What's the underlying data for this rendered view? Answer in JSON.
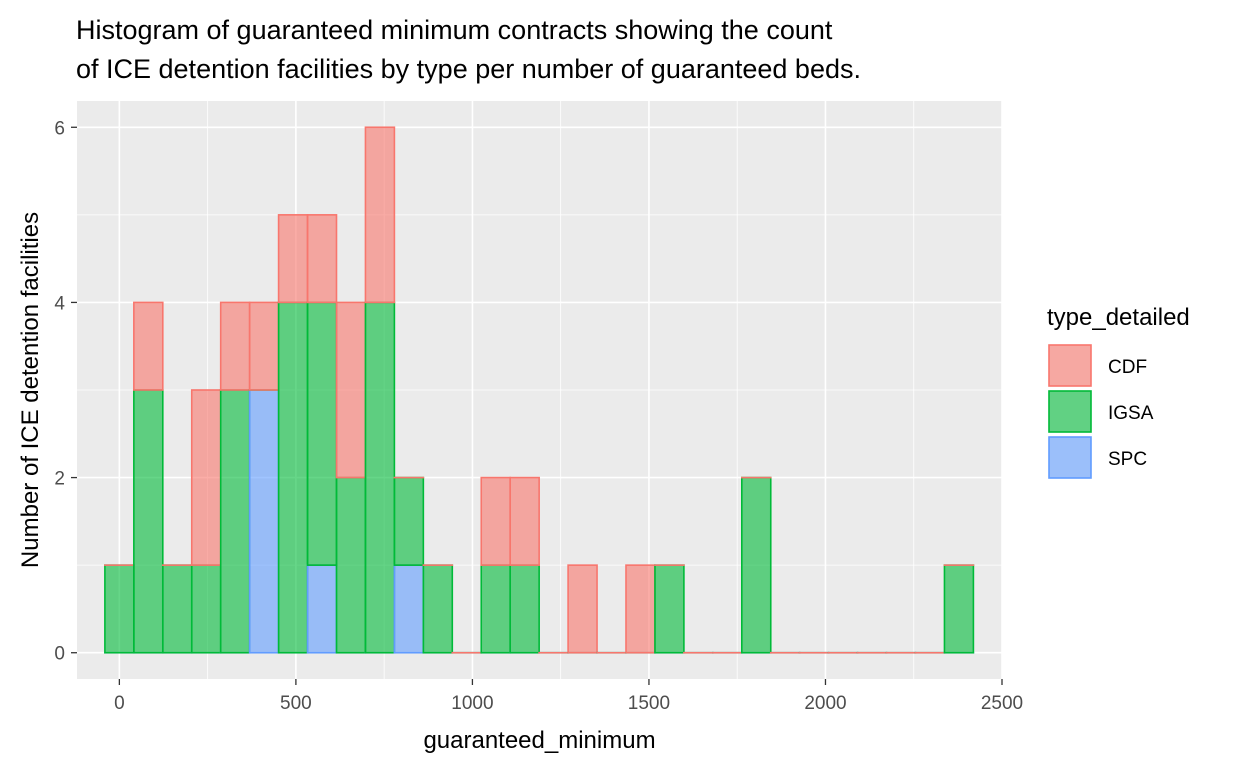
{
  "chart_data": {
    "type": "bar",
    "subtype": "stacked-histogram",
    "title_lines": [
      "Histogram of guaranteed minimum contracts showing the count",
      "of ICE detention facilities by type per number of guaranteed beds."
    ],
    "xlabel": "guaranteed_minimum",
    "ylabel": "Number of ICE detention facilities",
    "xlim": [
      -120,
      2500
    ],
    "ylim": [
      -0.3,
      6.3
    ],
    "x_ticks": [
      0,
      500,
      1000,
      1500,
      2000,
      2500
    ],
    "y_ticks": [
      0,
      2,
      4,
      6
    ],
    "grid": true,
    "background": "#ebebeb",
    "grid_color": "#ffffff",
    "legend": {
      "title": "type_detailed",
      "position": "right",
      "items": [
        {
          "label": "CDF",
          "fill": "#f8766d",
          "stroke": "#f8766d"
        },
        {
          "label": "IGSA",
          "fill": "#00ba38",
          "stroke": "#00ba38"
        },
        {
          "label": "SPC",
          "fill": "#619cff",
          "stroke": "#619cff"
        }
      ]
    },
    "bin_width": 82,
    "bin_centers": [
      0,
      82,
      164,
      246,
      328,
      410,
      492,
      574,
      656,
      738,
      820,
      902,
      984,
      1066,
      1148,
      1230,
      1312,
      1394,
      1476,
      1558,
      1640,
      1722,
      1804,
      1886,
      1968,
      2050,
      2132,
      2214,
      2296,
      2378
    ],
    "series": [
      {
        "name": "CDF",
        "fill": "#f8766d",
        "stroke": "#f8766d",
        "values": [
          0,
          1,
          0,
          2,
          1,
          1,
          1,
          1,
          2,
          2,
          0,
          0,
          0,
          1,
          1,
          0,
          1,
          0,
          1,
          0,
          0,
          0,
          0,
          0,
          0,
          0,
          0,
          0,
          0,
          0
        ]
      },
      {
        "name": "IGSA",
        "fill": "#00ba38",
        "stroke": "#00ba38",
        "values": [
          1,
          3,
          1,
          1,
          3,
          0,
          4,
          3,
          2,
          4,
          1,
          1,
          0,
          1,
          1,
          0,
          0,
          0,
          0,
          1,
          0,
          0,
          2,
          0,
          0,
          0,
          0,
          0,
          0,
          1
        ]
      },
      {
        "name": "SPC",
        "fill": "#619cff",
        "stroke": "#619cff",
        "values": [
          0,
          0,
          0,
          0,
          0,
          3,
          0,
          1,
          0,
          0,
          1,
          0,
          0,
          0,
          0,
          0,
          0,
          0,
          0,
          0,
          0,
          0,
          0,
          0,
          0,
          0,
          0,
          0,
          0,
          0
        ]
      }
    ]
  }
}
